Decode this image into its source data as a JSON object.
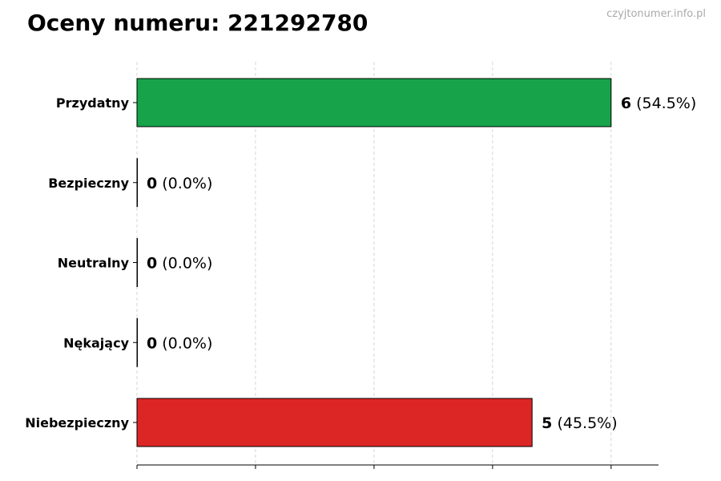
{
  "title": "Oceny numeru: 221292780",
  "watermark": "czyjtonumer.info.pl",
  "chart_data": {
    "type": "bar",
    "orientation": "horizontal",
    "categories": [
      "Przydatny",
      "Bezpieczny",
      "Neutralny",
      "Nękający",
      "Niebezpieczny"
    ],
    "values": [
      6,
      0,
      0,
      0,
      5
    ],
    "percent_labels": [
      "(54.5%)",
      "(0.0%)",
      "(0.0%)",
      "(0.0%)",
      "(45.5%)"
    ],
    "colors": [
      "#16a34a",
      "#16a34a",
      "#9ca3af",
      "#dc2626",
      "#dc2626"
    ],
    "xlim": [
      0,
      6.6
    ],
    "xticks": [
      0,
      1.5,
      3,
      4.5,
      6
    ],
    "grid": true,
    "xlabel": "",
    "ylabel": ""
  }
}
